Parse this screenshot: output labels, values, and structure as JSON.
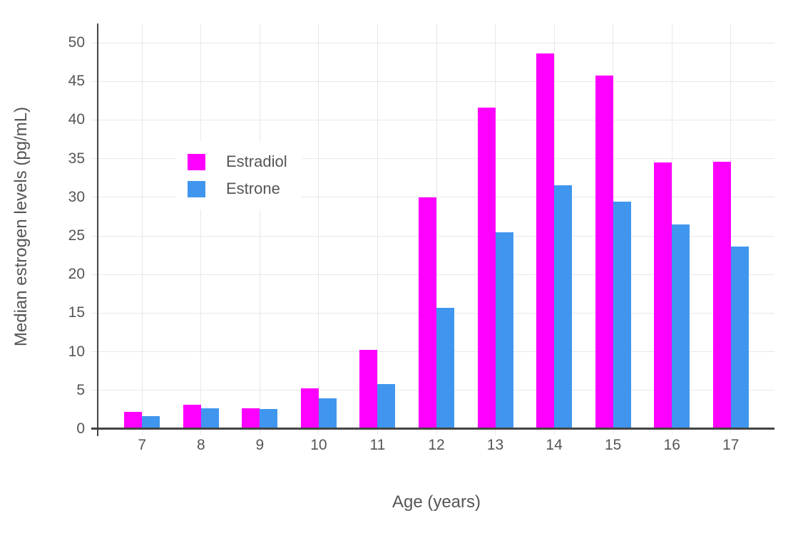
{
  "chart_data": {
    "type": "bar",
    "title": "",
    "xlabel": "Age (years)",
    "ylabel": "Median estrogen levels (pg/mL)",
    "categories": [
      7,
      8,
      9,
      10,
      11,
      12,
      13,
      14,
      15,
      16,
      17
    ],
    "series": [
      {
        "name": "Estradiol",
        "color": "#FF00FF",
        "values": [
          2.2,
          3.1,
          2.7,
          5.3,
          10.2,
          30.0,
          41.6,
          48.6,
          45.8,
          34.5,
          34.6
        ]
      },
      {
        "name": "Estrone",
        "color": "#4096EE",
        "values": [
          1.7,
          2.7,
          2.6,
          4.0,
          5.8,
          15.7,
          25.5,
          31.6,
          29.4,
          26.5,
          23.6
        ]
      }
    ],
    "ylim": [
      0,
      52.5
    ],
    "yticks": [
      0,
      5,
      10,
      15,
      20,
      25,
      30,
      35,
      40,
      45,
      50
    ],
    "grid": true,
    "legend_position": "inside-top-left",
    "colors": {
      "grid": "#E8E8E8",
      "axis": "#444444",
      "text": "#555555"
    }
  }
}
